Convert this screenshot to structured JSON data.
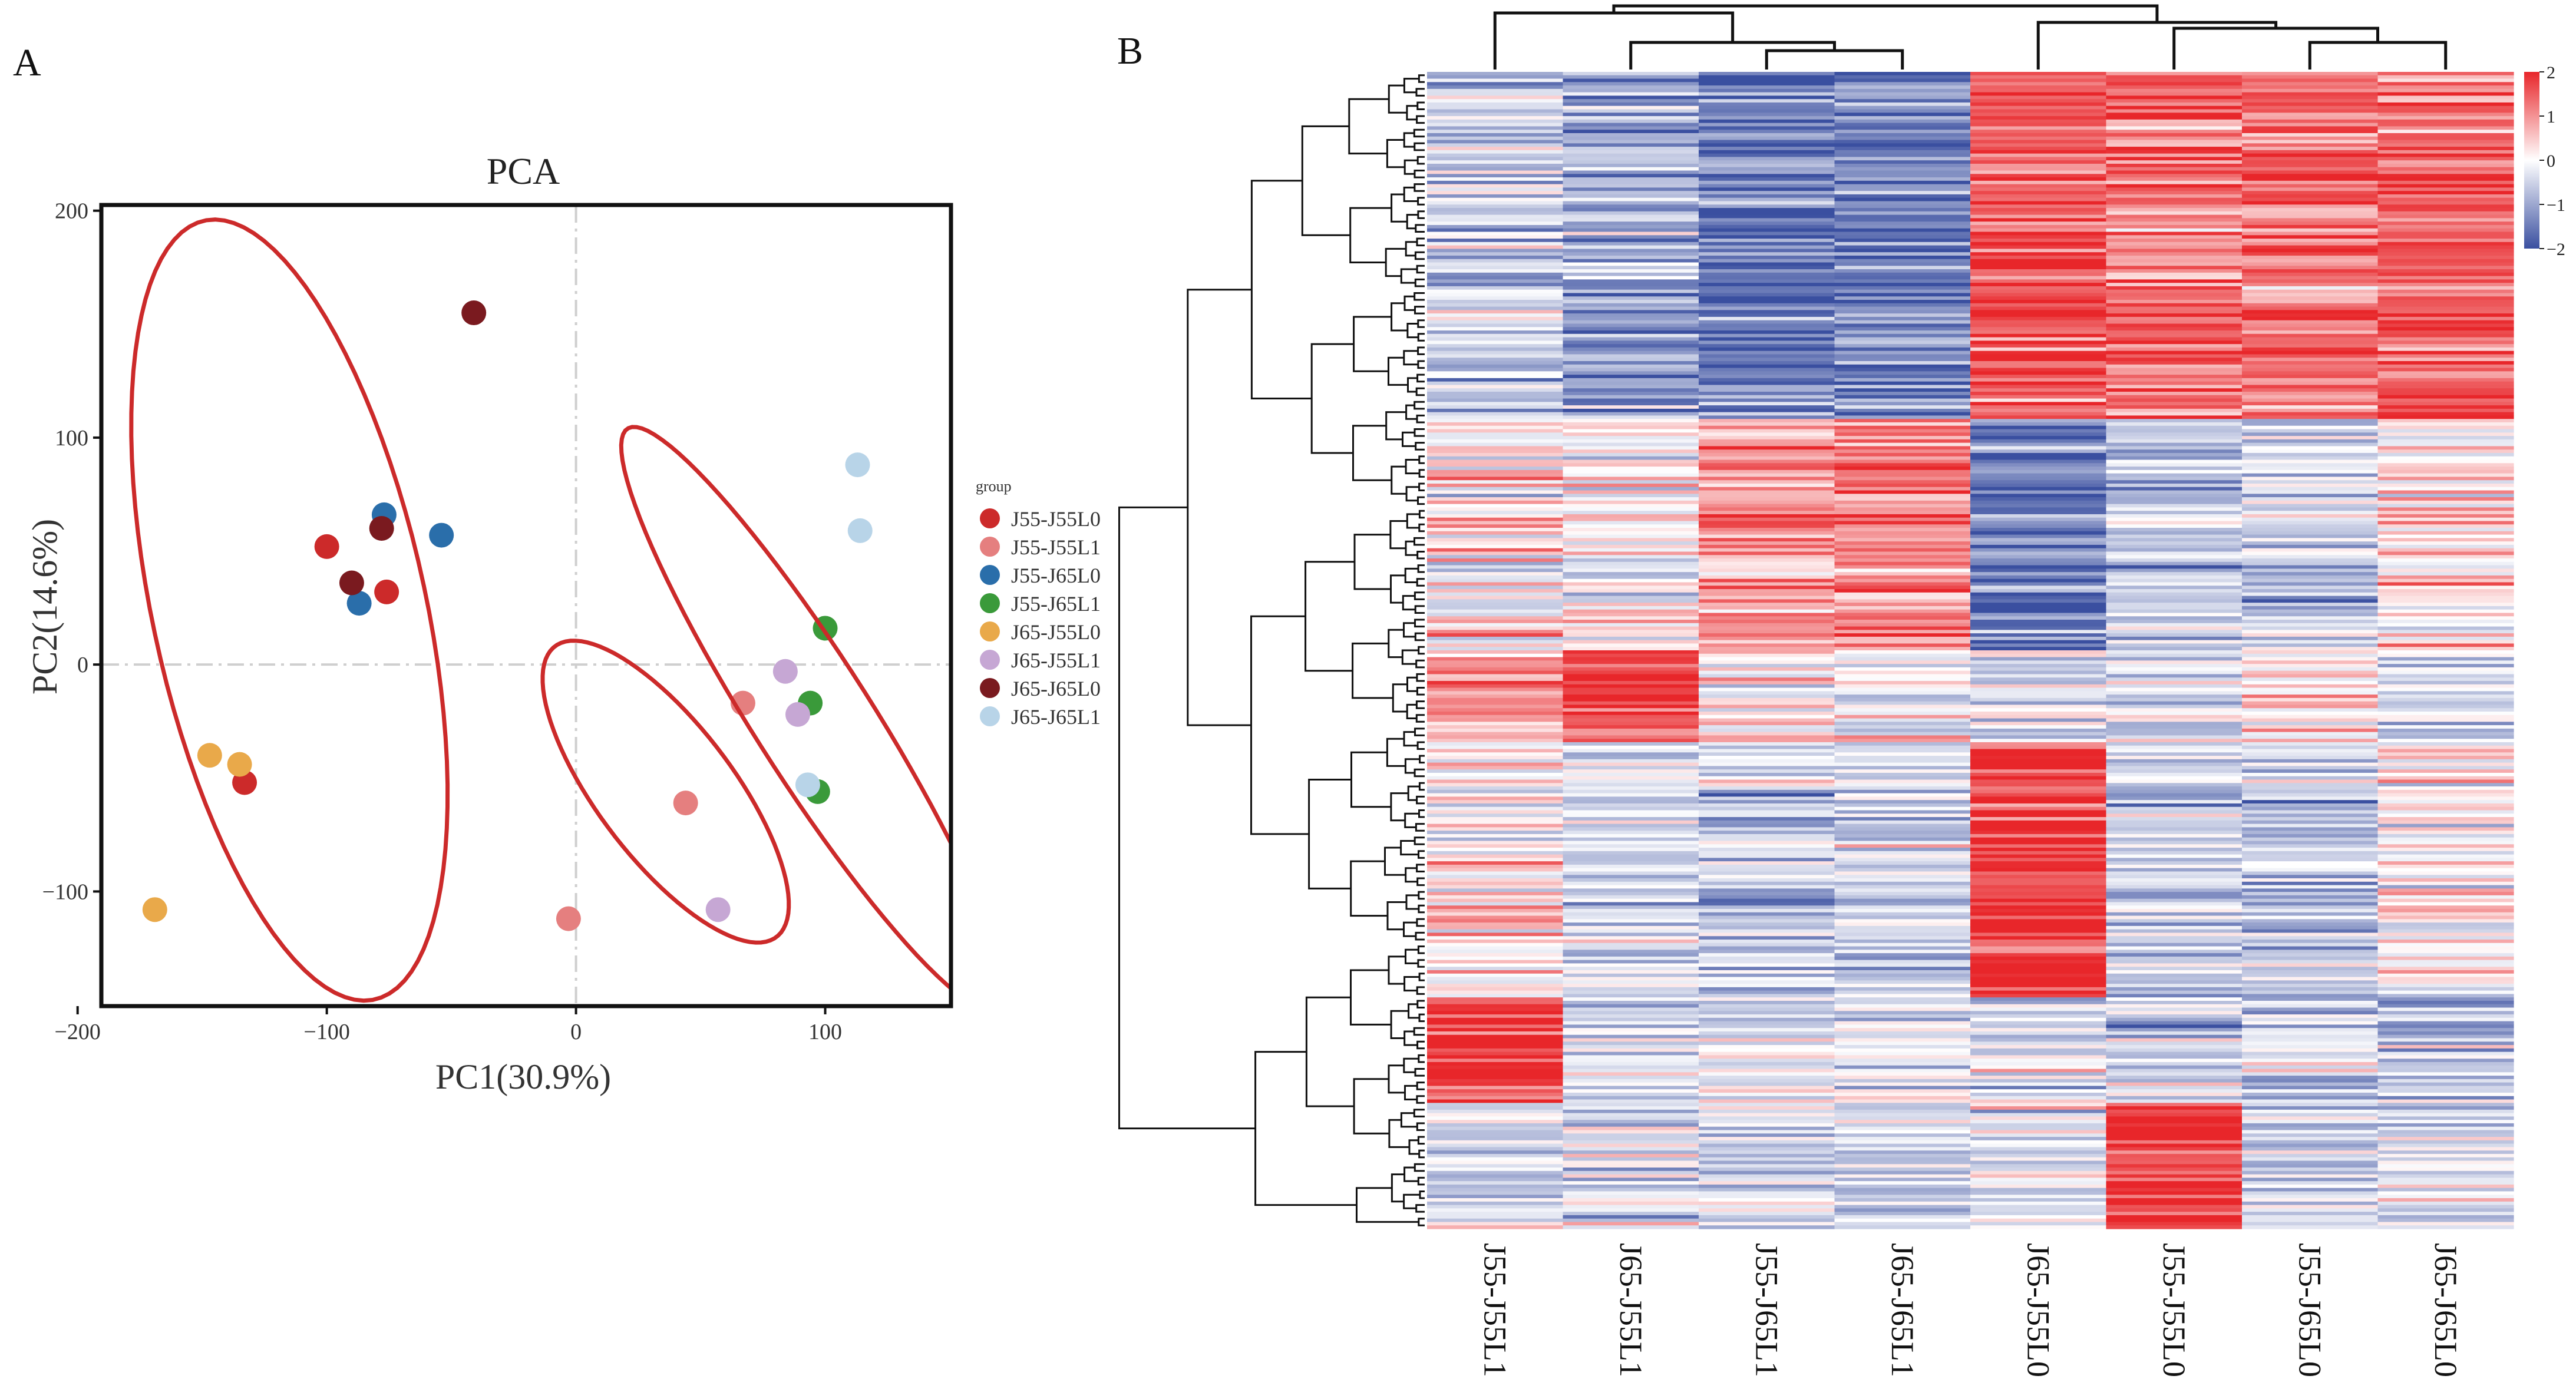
{
  "figure": {
    "panel_a_letter": "A",
    "panel_b_letter": "B"
  },
  "chart_data": [
    {
      "type": "scatter",
      "panel": "A",
      "title": "PCA",
      "xlabel": "PC1(30.9%)",
      "ylabel": "PC2(14.6%)",
      "xlim": [
        -190,
        150
      ],
      "ylim": [
        -150,
        202
      ],
      "xticks": [
        -200,
        -100,
        0,
        100
      ],
      "xtick_labels": [
        "−200",
        "−100",
        "0",
        "100"
      ],
      "yticks": [
        -100,
        0,
        100,
        200
      ],
      "ytick_labels": [
        "−100",
        "0",
        "100",
        "200"
      ],
      "reference_lines": {
        "x": 0,
        "y": 0
      },
      "legend_title": "group",
      "legend_position": "right",
      "series": [
        {
          "name": "J55-J55L0",
          "color": "#cc2a2a",
          "points": [
            [
              -100,
              52
            ],
            [
              -76,
              32
            ],
            [
              -133,
              -52
            ]
          ]
        },
        {
          "name": "J55-J55L1",
          "color": "#e57f7f",
          "points": [
            [
              -3,
              -112
            ],
            [
              44,
              -61
            ],
            [
              67,
              -17
            ]
          ]
        },
        {
          "name": "J55-J65L0",
          "color": "#2a6eaa",
          "points": [
            [
              -77,
              66
            ],
            [
              -54,
              57
            ],
            [
              -87,
              27
            ]
          ]
        },
        {
          "name": "J55-J65L1",
          "color": "#3a9a3a",
          "points": [
            [
              100,
              16
            ],
            [
              94,
              -17
            ],
            [
              97,
              -56
            ]
          ]
        },
        {
          "name": "J65-J55L0",
          "color": "#e9a94a",
          "points": [
            [
              -147,
              -40
            ],
            [
              -135,
              -44
            ],
            [
              -169,
              -108
            ]
          ]
        },
        {
          "name": "J65-J55L1",
          "color": "#c6a7d4",
          "points": [
            [
              84,
              -3
            ],
            [
              89,
              -22
            ],
            [
              57,
              -108
            ]
          ]
        },
        {
          "name": "J65-J65L0",
          "color": "#7a1a1f",
          "points": [
            [
              -41,
              155
            ],
            [
              -78,
              60
            ],
            [
              -90,
              36
            ]
          ]
        },
        {
          "name": "J65-J65L1",
          "color": "#b8d4e8",
          "points": [
            [
              113,
              88
            ],
            [
              114,
              59
            ],
            [
              93,
              -53
            ]
          ]
        }
      ],
      "ellipses": [
        {
          "center": [
            -115,
            24
          ],
          "radii": [
            55,
            175
          ],
          "angle": 11,
          "color": "#cc2a2a"
        },
        {
          "center": [
            36,
            -56
          ],
          "radii": [
            28,
            78
          ],
          "angle": 34,
          "color": "#cc2a2a"
        },
        {
          "center": [
            95,
            -24
          ],
          "radii": [
            24,
            148
          ],
          "angle": 30,
          "color": "#cc2a2a"
        }
      ]
    },
    {
      "type": "heatmap",
      "panel": "B",
      "columns": [
        "J55-J55L1",
        "J65-J55L1",
        "J55-J65L1",
        "J65-J65L1",
        "J65-J55L0",
        "J55-J55L0",
        "J55-J65L0",
        "J65-J65L0"
      ],
      "row_count": 340,
      "color_scale": {
        "min": -2,
        "max": 2,
        "colors": [
          "#3a4fa0",
          "#ffffff",
          "#e8262a"
        ]
      },
      "colorbar_ticks": [
        2,
        1,
        0,
        -1,
        -2
      ],
      "colorbar_tick_labels": [
        "2",
        "1",
        "0",
        "−1",
        "−2"
      ],
      "column_dendrogram": [
        [
          "J65-J55L1",
          "J55-J65L1",
          "J65-J65L1"
        ],
        [
          "J65-J55L0",
          "J55-J55L0",
          "J55-J65L0",
          "J65-J65L0"
        ]
      ],
      "row_blocks": [
        {
          "rows_pct": [
            0,
            30
          ],
          "values": [
            -0.6,
            -1.0,
            -1.4,
            -1.4,
            1.6,
            1.3,
            1.4,
            1.4
          ]
        },
        {
          "rows_pct": [
            30,
            50
          ],
          "values": [
            0.3,
            0.2,
            1.0,
            1.2,
            -1.4,
            -0.4,
            -0.5,
            0.3
          ]
        },
        {
          "rows_pct": [
            50,
            58
          ],
          "values": [
            0.8,
            1.6,
            0.0,
            -0.3,
            -0.5,
            -0.4,
            0.2,
            -0.4
          ]
        },
        {
          "rows_pct": [
            58,
            80
          ],
          "values": [
            0.2,
            -0.4,
            -0.6,
            -0.5,
            2.0,
            -0.6,
            -0.5,
            0.2
          ]
        },
        {
          "rows_pct": [
            80,
            89
          ],
          "values": [
            1.9,
            -0.3,
            -0.4,
            -0.1,
            -0.3,
            -0.4,
            -0.6,
            -0.6
          ]
        },
        {
          "rows_pct": [
            89,
            100
          ],
          "values": [
            -0.5,
            -0.3,
            -0.3,
            -0.4,
            -0.3,
            2.0,
            -0.4,
            -0.4
          ]
        }
      ]
    }
  ]
}
